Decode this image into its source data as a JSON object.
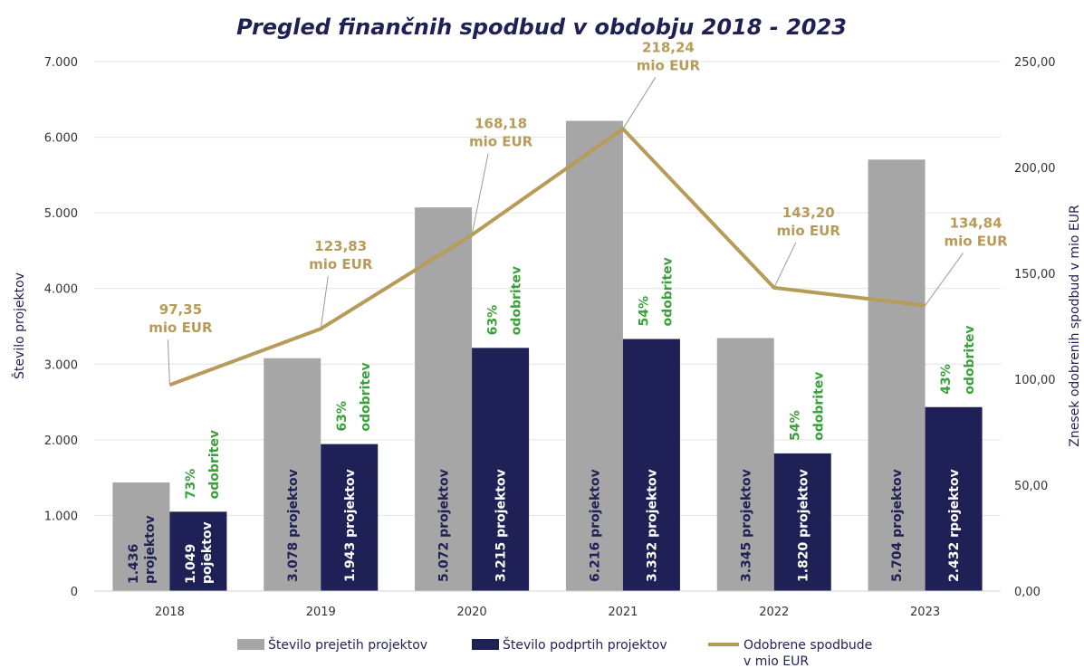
{
  "chart_data": {
    "type": "bar",
    "title": "Pregled finančnih spodbud v obdobju 2018 - 2023",
    "categories": [
      "2018",
      "2019",
      "2020",
      "2021",
      "2022",
      "2023"
    ],
    "ylabel": "Število projektov",
    "y2label": "Znesek odobrenih spodbud v mio EUR",
    "ylim": [
      0,
      7000
    ],
    "y2lim": [
      0,
      250
    ],
    "yticks": [
      "0",
      "1.000",
      "2.000",
      "3.000",
      "4.000",
      "5.000",
      "6.000",
      "7.000"
    ],
    "y2ticks": [
      "0,00",
      "50,00",
      "100,00",
      "150,00",
      "200,00",
      "250,00"
    ],
    "grid": true,
    "legend_position": "bottom",
    "colors": {
      "received": "#a6a6a6",
      "supported": "#1f2156",
      "line": "#b79b59",
      "pct": "#3aa13a"
    },
    "series": [
      {
        "name": "Število prejetih projektov",
        "kind": "bar",
        "values": [
          1436,
          3078,
          5072,
          6216,
          3345,
          5704
        ],
        "labels": [
          "1.436 projektov",
          "3.078 projektov",
          "5.072 projektov",
          "6.216 projektov",
          "3.345 projektov",
          "5.704 projektov"
        ]
      },
      {
        "name": "Število podprtih projektov",
        "kind": "bar",
        "values": [
          1049,
          1943,
          3215,
          3332,
          1820,
          2432
        ],
        "labels": [
          "1.049 pojektov",
          "1.943 projektov",
          "3.215 projektov",
          "3.332 projektov",
          "1.820 projektov",
          "2.432 rpojektov"
        ],
        "approval_labels": [
          "73% odobritev",
          "63% odobritev",
          "63% odobritev",
          "54% odobritev",
          "54% odobritev",
          "43% odobritev"
        ]
      },
      {
        "name": "Odobrene spodbude v mio EUR",
        "kind": "line",
        "axis": "right",
        "values": [
          97.35,
          123.83,
          168.18,
          218.24,
          143.2,
          134.84
        ],
        "labels": [
          "97,35 mio EUR",
          "123,83 mio EUR",
          "168,18 mio EUR",
          "218,24 mio EUR",
          "143,20 mio EUR",
          "134,84 mio EUR"
        ]
      }
    ]
  }
}
